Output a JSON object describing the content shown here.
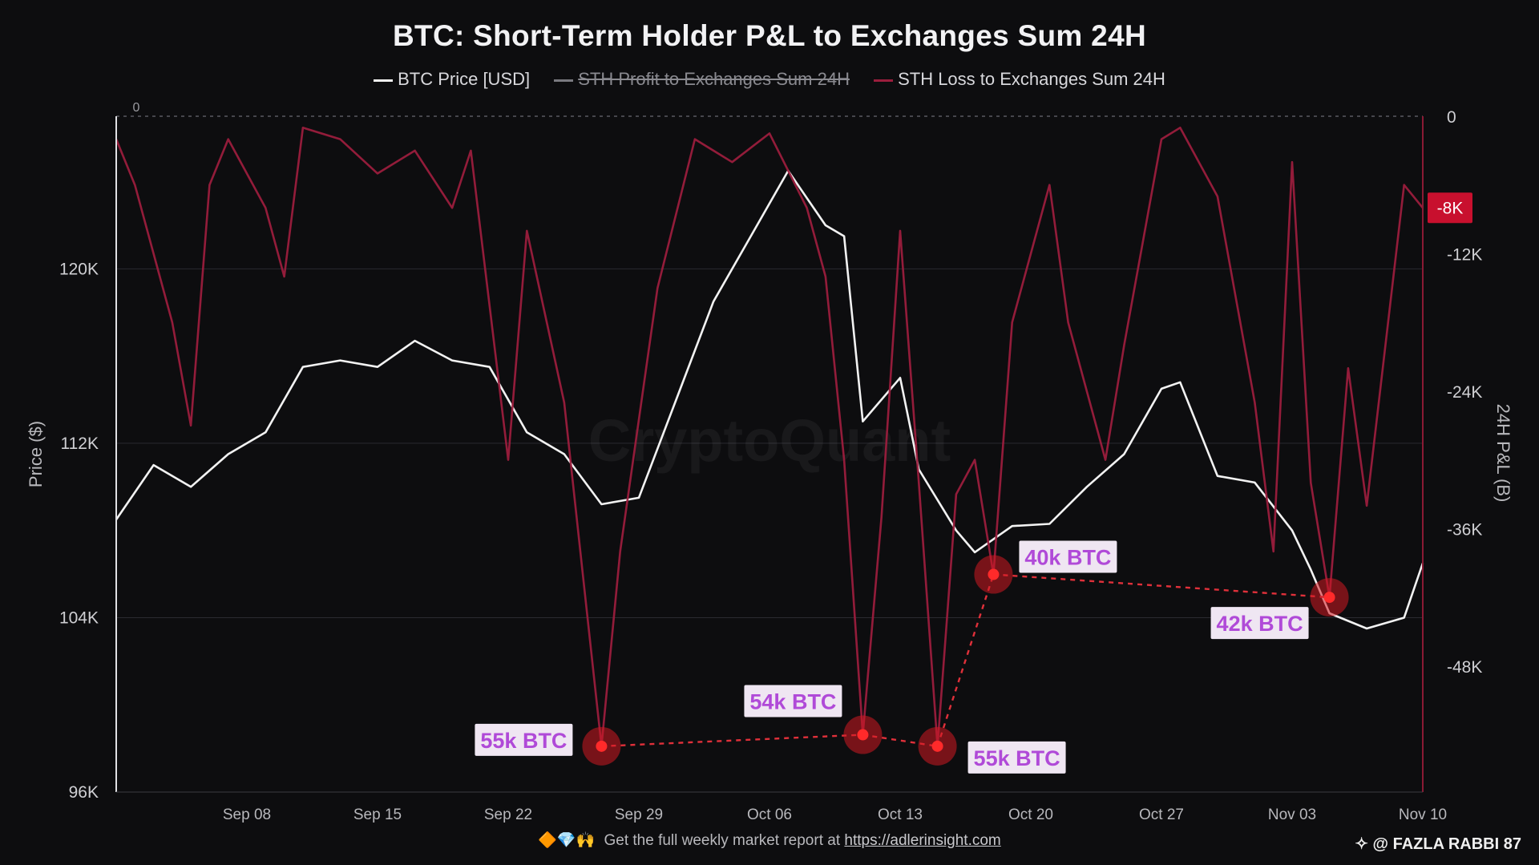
{
  "title": "BTC: Short-Term Holder P&L to Exchanges Sum 24H",
  "legend": [
    {
      "label": "BTC Price [USD]",
      "color": "#f2f2f2",
      "struck": false
    },
    {
      "label": "STH Profit to Exchanges Sum 24H",
      "color": "#7a7a80",
      "struck": true
    },
    {
      "label": "STH Loss to Exchanges Sum 24H",
      "color": "#9b1e3d",
      "struck": false
    }
  ],
  "footer": {
    "emojis": "🔶💎🙌",
    "text": "Get the full weekly market report at",
    "link": "https://adlerinsight.com"
  },
  "credit": "@ FAZLA RABBI 87",
  "watermark": "CryptoQuant",
  "chart_data": {
    "type": "line",
    "title": "BTC: Short-Term Holder P&L to Exchanges Sum 24H",
    "ylabel": "Price ($)",
    "ylabel_right": "24H P&L (B)",
    "x_ticks": [
      "Sep 08",
      "Sep 15",
      "Sep 22",
      "Sep 29",
      "Oct 06",
      "Oct 13",
      "Oct 20",
      "Oct 27",
      "Nov 03",
      "Nov 10"
    ],
    "x_range": [
      "Sep 01",
      "Nov 10"
    ],
    "y_left": {
      "ticks": [
        "96K",
        "104K",
        "112K",
        "120K"
      ],
      "ylim": [
        96000,
        127000
      ]
    },
    "y_right": {
      "ticks": [
        "0",
        "-12K",
        "-24K",
        "-36K",
        "-48K"
      ],
      "ylim": [
        -59000,
        0
      ]
    },
    "left_axis_zero_label": "0",
    "current_value_badge": "-8K",
    "grid": true,
    "legend_position": "top-center",
    "series": [
      {
        "name": "BTC Price [USD]",
        "axis": "left",
        "color": "#f2f2f2",
        "x": [
          "Sep 01",
          "Sep 03",
          "Sep 05",
          "Sep 07",
          "Sep 09",
          "Sep 11",
          "Sep 13",
          "Sep 15",
          "Sep 17",
          "Sep 19",
          "Sep 21",
          "Sep 23",
          "Sep 25",
          "Sep 27",
          "Sep 29",
          "Oct 01",
          "Oct 03",
          "Oct 05",
          "Oct 07",
          "Oct 09",
          "Oct 10",
          "Oct 11",
          "Oct 13",
          "Oct 14",
          "Oct 16",
          "Oct 17",
          "Oct 19",
          "Oct 21",
          "Oct 23",
          "Oct 25",
          "Oct 27",
          "Oct 28",
          "Oct 30",
          "Nov 01",
          "Nov 03",
          "Nov 04",
          "Nov 05",
          "Nov 07",
          "Nov 09",
          "Nov 10"
        ],
        "y": [
          108500,
          111000,
          110000,
          111500,
          112500,
          115500,
          115800,
          115500,
          116700,
          115800,
          115500,
          112500,
          111500,
          109200,
          109500,
          114000,
          118500,
          121500,
          124500,
          122000,
          121500,
          113000,
          115000,
          110800,
          108000,
          107000,
          108200,
          108300,
          110000,
          111500,
          114500,
          114800,
          110500,
          110200,
          108000,
          106200,
          104200,
          103500,
          104000,
          106500
        ]
      },
      {
        "name": "STH Loss to Exchanges Sum 24H",
        "axis": "right",
        "color": "#9b1e3d",
        "x": [
          "Sep 01",
          "Sep 02",
          "Sep 04",
          "Sep 05",
          "Sep 06",
          "Sep 07",
          "Sep 09",
          "Sep 10",
          "Sep 11",
          "Sep 13",
          "Sep 15",
          "Sep 17",
          "Sep 19",
          "Sep 20",
          "Sep 22",
          "Sep 23",
          "Sep 25",
          "Sep 26",
          "Sep 27",
          "Sep 28",
          "Sep 30",
          "Oct 02",
          "Oct 04",
          "Oct 06",
          "Oct 08",
          "Oct 09",
          "Oct 10",
          "Oct 11",
          "Oct 12",
          "Oct 13",
          "Oct 14",
          "Oct 15",
          "Oct 16",
          "Oct 17",
          "Oct 18",
          "Oct 19",
          "Oct 21",
          "Oct 22",
          "Oct 24",
          "Oct 25",
          "Oct 27",
          "Oct 28",
          "Oct 30",
          "Nov 01",
          "Nov 02",
          "Nov 03",
          "Nov 04",
          "Nov 05",
          "Nov 06",
          "Nov 07",
          "Nov 09",
          "Nov 10"
        ],
        "y": [
          -2000,
          -6000,
          -18000,
          -27000,
          -6000,
          -2000,
          -8000,
          -14000,
          -1000,
          -2000,
          -5000,
          -3000,
          -8000,
          -3000,
          -30000,
          -10000,
          -25000,
          -40000,
          -55000,
          -38000,
          -15000,
          -2000,
          -4000,
          -1500,
          -8000,
          -14000,
          -30000,
          -54000,
          -35000,
          -10000,
          -32000,
          -55000,
          -33000,
          -30000,
          -40000,
          -18000,
          -6000,
          -18000,
          -30000,
          -20000,
          -2000,
          -1000,
          -7000,
          -25000,
          -38000,
          -4000,
          -32000,
          -42000,
          -22000,
          -34000,
          -6000,
          -8000
        ]
      }
    ],
    "annotations": [
      {
        "label": "55k BTC",
        "x": "Sep 27",
        "value": -55000
      },
      {
        "label": "54k BTC",
        "x": "Oct 11",
        "value": -54000
      },
      {
        "label": "55k BTC",
        "x": "Oct 15",
        "value": -55000
      },
      {
        "label": "40k BTC",
        "x": "Oct 18",
        "value": -40000
      },
      {
        "label": "42k BTC",
        "x": "Nov 05",
        "value": -42000
      }
    ]
  }
}
